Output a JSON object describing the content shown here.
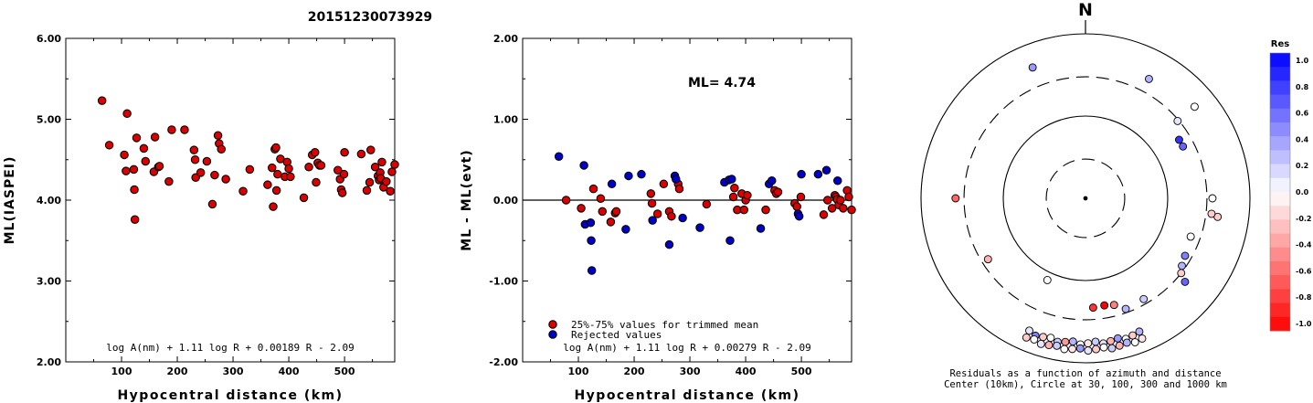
{
  "event_id": "20151230073929",
  "chart_data": [
    {
      "type": "scatter",
      "panel": "left",
      "xlabel": "Hypocentral distance (km)",
      "ylabel": "ML(IASPEI)",
      "xlim": [
        0,
        590
      ],
      "ylim": [
        2.0,
        6.0
      ],
      "x_ticks": [
        "100",
        "200",
        "300",
        "400",
        "500"
      ],
      "y_ticks": [
        "2.00",
        "3.00",
        "4.00",
        "5.00",
        "6.00"
      ],
      "formula": "log A(nm) + 1.11 log R + 0.00189 R - 2.09",
      "point_color": "#dd0000",
      "points": [
        [
          65,
          5.23
        ],
        [
          78,
          4.68
        ],
        [
          105,
          4.56
        ],
        [
          108,
          4.36
        ],
        [
          110,
          5.07
        ],
        [
          122,
          4.38
        ],
        [
          123,
          4.13
        ],
        [
          124,
          3.76
        ],
        [
          127,
          4.77
        ],
        [
          140,
          4.64
        ],
        [
          143,
          4.48
        ],
        [
          158,
          4.35
        ],
        [
          160,
          4.78
        ],
        [
          166,
          4.41
        ],
        [
          168,
          4.42
        ],
        [
          185,
          4.23
        ],
        [
          190,
          4.87
        ],
        [
          213,
          4.87
        ],
        [
          230,
          4.62
        ],
        [
          232,
          4.5
        ],
        [
          233,
          4.28
        ],
        [
          242,
          4.34
        ],
        [
          253,
          4.48
        ],
        [
          263,
          3.95
        ],
        [
          267,
          4.31
        ],
        [
          273,
          4.8
        ],
        [
          275,
          4.7
        ],
        [
          279,
          4.63
        ],
        [
          287,
          4.26
        ],
        [
          318,
          4.11
        ],
        [
          330,
          4.38
        ],
        [
          362,
          4.19
        ],
        [
          370,
          4.4
        ],
        [
          372,
          3.92
        ],
        [
          375,
          4.63
        ],
        [
          377,
          4.65
        ],
        [
          378,
          4.12
        ],
        [
          380,
          4.32
        ],
        [
          385,
          4.51
        ],
        [
          393,
          4.29
        ],
        [
          397,
          4.47
        ],
        [
          400,
          4.39
        ],
        [
          403,
          4.29
        ],
        [
          427,
          4.03
        ],
        [
          436,
          4.41
        ],
        [
          442,
          4.56
        ],
        [
          447,
          4.59
        ],
        [
          449,
          4.22
        ],
        [
          452,
          4.46
        ],
        [
          455,
          4.43
        ],
        [
          458,
          4.43
        ],
        [
          488,
          4.37
        ],
        [
          492,
          4.26
        ],
        [
          494,
          4.13
        ],
        [
          496,
          4.09
        ],
        [
          499,
          4.32
        ],
        [
          500,
          4.59
        ],
        [
          530,
          4.57
        ],
        [
          540,
          4.12
        ],
        [
          545,
          4.22
        ],
        [
          547,
          4.62
        ],
        [
          555,
          4.41
        ],
        [
          560,
          4.3
        ],
        [
          562,
          4.25
        ],
        [
          564,
          4.34
        ],
        [
          565,
          4.27
        ],
        [
          567,
          4.47
        ],
        [
          570,
          4.16
        ],
        [
          575,
          4.23
        ],
        [
          582,
          4.11
        ],
        [
          585,
          4.35
        ],
        [
          590,
          4.44
        ]
      ]
    },
    {
      "type": "scatter",
      "panel": "middle",
      "xlabel": "Hypocentral distance (km)",
      "ylabel": "ML - ML(evt)",
      "xlim": [
        0,
        590
      ],
      "ylim": [
        -2.0,
        2.0
      ],
      "x_ticks": [
        "100",
        "200",
        "300",
        "400",
        "500"
      ],
      "y_ticks": [
        "-2.00",
        "-1.00",
        "0.00",
        "1.00",
        "2.00"
      ],
      "annotation": "ML= 4.74",
      "formula": "log A(nm) + 1.11 log R + 0.00279 R - 2.09",
      "legend": [
        {
          "label": "25%-75% values for trimmed mean",
          "color": "#dd0000"
        },
        {
          "label": "Rejected values",
          "color": "#0000cc"
        }
      ],
      "series": [
        {
          "name": "25%-75% values for trimmed mean",
          "color": "#dd0000",
          "points": [
            [
              78,
              0.0
            ],
            [
              105,
              -0.1
            ],
            [
              127,
              0.14
            ],
            [
              140,
              0.02
            ],
            [
              143,
              -0.14
            ],
            [
              158,
              -0.27
            ],
            [
              166,
              -0.16
            ],
            [
              168,
              -0.14
            ],
            [
              230,
              0.08
            ],
            [
              232,
              -0.04
            ],
            [
              242,
              -0.17
            ],
            [
              253,
              0.2
            ],
            [
              263,
              -0.14
            ],
            [
              267,
              -0.2
            ],
            [
              279,
              0.2
            ],
            [
              281,
              0.14
            ],
            [
              330,
              -0.05
            ],
            [
              378,
              0.04
            ],
            [
              380,
              0.15
            ],
            [
              385,
              -0.12
            ],
            [
              393,
              0.08
            ],
            [
              397,
              -0.12
            ],
            [
              400,
              0.0
            ],
            [
              403,
              0.06
            ],
            [
              436,
              -0.12
            ],
            [
              452,
              0.12
            ],
            [
              455,
              0.08
            ],
            [
              458,
              0.1
            ],
            [
              488,
              -0.04
            ],
            [
              492,
              -0.08
            ],
            [
              499,
              0.04
            ],
            [
              540,
              -0.18
            ],
            [
              547,
              0.0
            ],
            [
              555,
              -0.1
            ],
            [
              560,
              0.06
            ],
            [
              562,
              0.04
            ],
            [
              564,
              0.01
            ],
            [
              567,
              -0.06
            ],
            [
              570,
              0.0
            ],
            [
              575,
              -0.1
            ],
            [
              582,
              0.12
            ],
            [
              585,
              0.04
            ],
            [
              590,
              -0.12
            ]
          ]
        },
        {
          "name": "Rejected values",
          "color": "#0000cc",
          "points": [
            [
              65,
              0.54
            ],
            [
              110,
              0.43
            ],
            [
              112,
              -0.3
            ],
            [
              122,
              -0.28
            ],
            [
              123,
              -0.5
            ],
            [
              124,
              -0.87
            ],
            [
              160,
              0.2
            ],
            [
              185,
              -0.36
            ],
            [
              190,
              0.3
            ],
            [
              213,
              0.32
            ],
            [
              233,
              -0.25
            ],
            [
              263,
              -0.55
            ],
            [
              273,
              0.3
            ],
            [
              275,
              0.26
            ],
            [
              287,
              -0.22
            ],
            [
              318,
              -0.34
            ],
            [
              362,
              0.22
            ],
            [
              370,
              0.25
            ],
            [
              372,
              -0.5
            ],
            [
              375,
              0.26
            ],
            [
              427,
              -0.35
            ],
            [
              442,
              0.2
            ],
            [
              447,
              0.24
            ],
            [
              494,
              -0.17
            ],
            [
              496,
              -0.2
            ],
            [
              500,
              0.32
            ],
            [
              530,
              0.32
            ],
            [
              545,
              0.37
            ],
            [
              565,
              0.24
            ]
          ]
        }
      ]
    },
    {
      "type": "scatter",
      "panel": "polar",
      "north_label": "N",
      "caption_line1": "Residuals as a function of azimuth and distance",
      "caption_line2": "Center (10km), Circle at 30, 100, 300 and 1000 km",
      "rings_km": [
        30,
        100,
        300,
        1000
      ],
      "colorbar": {
        "title": "Res",
        "ticks": [
          "1.0",
          "0.8",
          "0.6",
          "0.4",
          "0.2",
          "0.0",
          "-0.2",
          "-0.4",
          "-0.6",
          "-0.8",
          "-1.0"
        ],
        "max_color": "#0000ff",
        "min_color": "#ff0000"
      },
      "points": [
        {
          "az": 338,
          "dist_km": 520,
          "res": 0.4
        },
        {
          "az": 28,
          "dist_km": 440,
          "res": 0.3
        },
        {
          "az": 270,
          "dist_km": 380,
          "res": -0.6
        },
        {
          "az": 58,
          "dist_km": 220,
          "res": 0.8
        },
        {
          "az": 62,
          "dist_km": 220,
          "res": 0.6
        },
        {
          "az": 50,
          "dist_km": 290,
          "res": 0.1
        },
        {
          "az": 50,
          "dist_km": 540,
          "res": 0.0
        },
        {
          "az": 90,
          "dist_km": 350,
          "res": 0.0
        },
        {
          "az": 98,
          "dist_km": 420,
          "res": -0.2
        },
        {
          "az": 97,
          "dist_km": 350,
          "res": -0.2
        },
        {
          "az": 110,
          "dist_km": 230,
          "res": 0.0
        },
        {
          "az": 120,
          "dist_km": 250,
          "res": 0.5
        },
        {
          "az": 125,
          "dist_km": 270,
          "res": 0.3
        },
        {
          "az": 130,
          "dist_km": 380,
          "res": 0.6
        },
        {
          "az": 128,
          "dist_km": 300,
          "res": -0.2
        },
        {
          "az": 238,
          "dist_km": 250,
          "res": -0.3
        },
        {
          "az": 205,
          "dist_km": 125,
          "res": 0.0
        },
        {
          "az": 170,
          "dist_km": 210,
          "res": -1.0
        },
        {
          "az": 176,
          "dist_km": 215,
          "res": -0.8
        },
        {
          "az": 165,
          "dist_km": 220,
          "res": -0.5
        },
        {
          "az": 160,
          "dist_km": 270,
          "res": 0.3
        },
        {
          "az": 150,
          "dist_km": 260,
          "res": 0.2
        }
      ],
      "cluster_residuals": [
        0.3,
        -0.2,
        0.0,
        0.4,
        -0.3,
        0.1,
        0.2,
        -0.1,
        0.0,
        0.3,
        -0.4,
        0.2,
        0.0,
        -0.2,
        0.5,
        0.1,
        -0.1,
        0.0,
        0.3,
        -0.3,
        0.2,
        0.0,
        -0.2,
        0.1,
        0.4,
        -0.1,
        0.0,
        0.2,
        -0.3,
        0.1,
        0.0,
        -0.2
      ]
    }
  ]
}
